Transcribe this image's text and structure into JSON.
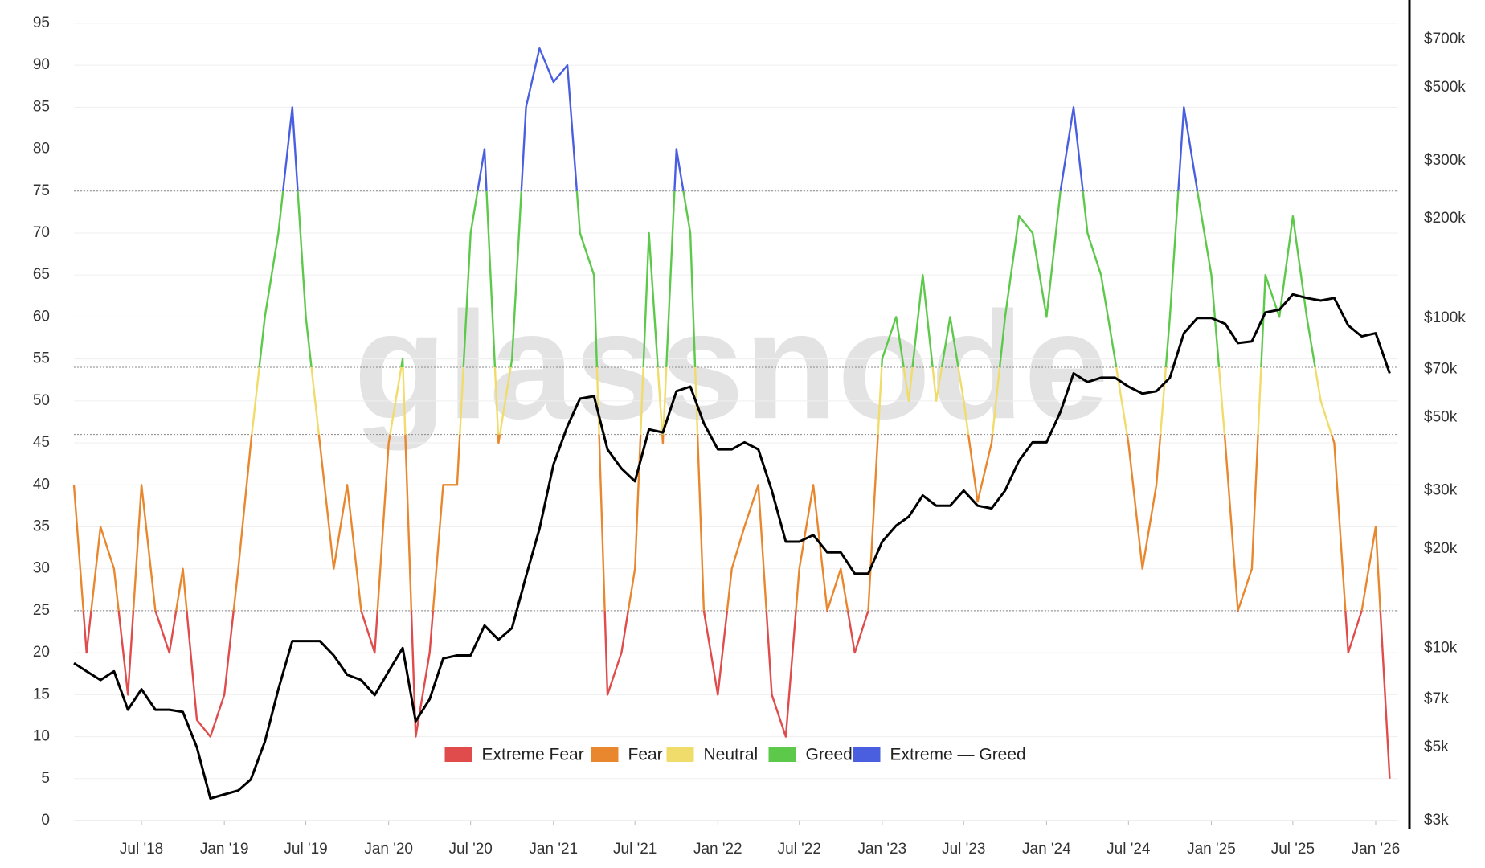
{
  "chart_data": {
    "type": "zone-line",
    "watermark": "glassnode",
    "x": [
      "2018-02",
      "2018-03",
      "2018-04",
      "2018-05",
      "2018-06",
      "2018-07",
      "2018-08",
      "2018-09",
      "2018-10",
      "2018-11",
      "2018-12",
      "2019-01",
      "2019-02",
      "2019-03",
      "2019-04",
      "2019-05",
      "2019-06",
      "2019-07",
      "2019-08",
      "2019-09",
      "2019-10",
      "2019-11",
      "2019-12",
      "2020-01",
      "2020-02",
      "2020-03",
      "2020-04",
      "2020-05",
      "2020-06",
      "2020-07",
      "2020-08",
      "2020-09",
      "2020-10",
      "2020-11",
      "2020-12",
      "2021-01",
      "2021-02",
      "2021-03",
      "2021-04",
      "2021-05",
      "2021-06",
      "2021-07",
      "2021-08",
      "2021-09",
      "2021-10",
      "2021-11",
      "2021-12",
      "2022-01",
      "2022-02",
      "2022-03",
      "2022-04",
      "2022-05",
      "2022-06",
      "2022-07",
      "2022-08",
      "2022-09",
      "2022-10",
      "2022-11",
      "2022-12",
      "2023-01",
      "2023-02",
      "2023-03",
      "2023-04",
      "2023-05",
      "2023-06",
      "2023-07",
      "2023-08",
      "2023-09",
      "2023-10",
      "2023-11",
      "2023-12",
      "2024-01",
      "2024-02",
      "2024-03",
      "2024-04",
      "2024-05",
      "2024-06",
      "2024-07",
      "2024-08",
      "2024-09",
      "2024-10",
      "2024-11",
      "2024-12",
      "2025-01",
      "2025-02",
      "2025-03",
      "2025-04",
      "2025-05",
      "2025-06",
      "2025-07",
      "2025-08",
      "2025-09",
      "2025-10",
      "2025-11",
      "2025-12",
      "2026-01",
      "2026-02"
    ],
    "series": [
      {
        "axis": "y",
        "values": [
          40,
          20,
          35,
          30,
          15,
          40,
          25,
          20,
          30,
          12,
          10,
          15,
          30,
          45,
          60,
          70,
          85,
          60,
          45,
          30,
          40,
          25,
          20,
          45,
          55,
          10,
          20,
          40,
          40,
          70,
          80,
          45,
          55,
          85,
          92,
          88,
          90,
          70,
          65,
          15,
          20,
          30,
          70,
          45,
          80,
          70,
          25,
          15,
          30,
          35,
          40,
          15,
          10,
          30,
          40,
          25,
          30,
          20,
          25,
          55,
          60,
          50,
          65,
          50,
          60,
          50,
          38,
          45,
          60,
          72,
          70,
          60,
          75,
          85,
          70,
          65,
          55,
          45,
          30,
          40,
          60,
          85,
          75,
          65,
          45,
          25,
          30,
          65,
          60,
          72,
          60,
          50,
          45,
          20,
          25,
          35,
          5
        ]
      },
      {
        "axis": "y2",
        "color": "#000000",
        "values": [
          9000,
          8500,
          8000,
          8500,
          6500,
          7500,
          6500,
          6500,
          6400,
          5000,
          3500,
          3600,
          3700,
          4000,
          5200,
          7500,
          10500,
          10500,
          10500,
          9500,
          8300,
          8000,
          7200,
          8500,
          10000,
          6000,
          7000,
          9300,
          9500,
          9500,
          11700,
          10600,
          11500,
          16500,
          23000,
          36000,
          47000,
          57000,
          58000,
          40000,
          35000,
          32000,
          46000,
          45000,
          60000,
          62000,
          48000,
          40000,
          40000,
          42000,
          40000,
          30000,
          21000,
          21000,
          22000,
          19500,
          19500,
          16800,
          16800,
          21000,
          23500,
          25000,
          29000,
          27000,
          27000,
          30000,
          27000,
          26500,
          30000,
          37000,
          42000,
          42000,
          52000,
          68000,
          64000,
          66000,
          66000,
          62000,
          59000,
          60000,
          66000,
          90000,
          100000,
          100000,
          96000,
          84000,
          85000,
          104000,
          106000,
          118000,
          115000,
          113000,
          115000,
          95000,
          88000,
          90000,
          68000
        ]
      }
    ],
    "zones": [
      {
        "name": "Extreme Fear",
        "color": "#e04b4b"
      },
      {
        "name": "Fear",
        "color": "#e8872e"
      },
      {
        "name": "Neutral",
        "color": "#f0dc6a"
      },
      {
        "name": "Greed",
        "color": "#5dc94a"
      },
      {
        "name": "Extreme — Greed",
        "color": "#4a5fe0"
      }
    ],
    "thresholds": [
      25,
      46,
      54,
      75
    ],
    "xlim": [
      "2018-02-01",
      "2026-02-20"
    ],
    "xticks": [
      {
        "value": "2018-07-01",
        "label": "Jul '18"
      },
      {
        "value": "2019-01-01",
        "label": "Jan '19"
      },
      {
        "value": "2019-07-01",
        "label": "Jul '19"
      },
      {
        "value": "2020-01-01",
        "label": "Jan '20"
      },
      {
        "value": "2020-07-01",
        "label": "Jul '20"
      },
      {
        "value": "2021-01-01",
        "label": "Jan '21"
      },
      {
        "value": "2021-07-01",
        "label": "Jul '21"
      },
      {
        "value": "2022-01-01",
        "label": "Jan '22"
      },
      {
        "value": "2022-07-01",
        "label": "Jul '22"
      },
      {
        "value": "2023-01-01",
        "label": "Jan '23"
      },
      {
        "value": "2023-07-01",
        "label": "Jul '23"
      },
      {
        "value": "2024-01-01",
        "label": "Jan '24"
      },
      {
        "value": "2024-07-01",
        "label": "Jul '24"
      },
      {
        "value": "2025-01-01",
        "label": "Jan '25"
      },
      {
        "value": "2025-07-01",
        "label": "Jul '25"
      },
      {
        "value": "2026-01-01",
        "label": "Jan '26"
      }
    ],
    "ylim": [
      0,
      97
    ],
    "yticks": [
      0,
      5,
      10,
      15,
      20,
      25,
      30,
      35,
      40,
      45,
      50,
      55,
      60,
      65,
      70,
      75,
      80,
      85,
      90,
      95
    ],
    "y2lim": [
      3000,
      880000
    ],
    "y2log": true,
    "y2ticks": [
      {
        "value": 3000,
        "label": "$3k"
      },
      {
        "value": 5000,
        "label": "$5k"
      },
      {
        "value": 7000,
        "label": "$7k"
      },
      {
        "value": 10000,
        "label": "$10k"
      },
      {
        "value": 20000,
        "label": "$20k"
      },
      {
        "value": 30000,
        "label": "$30k"
      },
      {
        "value": 50000,
        "label": "$50k"
      },
      {
        "value": 70000,
        "label": "$70k"
      },
      {
        "value": 100000,
        "label": "$100k"
      },
      {
        "value": 200000,
        "label": "$200k"
      },
      {
        "value": 300000,
        "label": "$300k"
      },
      {
        "value": 500000,
        "label": "$500k"
      },
      {
        "value": 700000,
        "label": "$700k"
      }
    ],
    "grid": true
  }
}
